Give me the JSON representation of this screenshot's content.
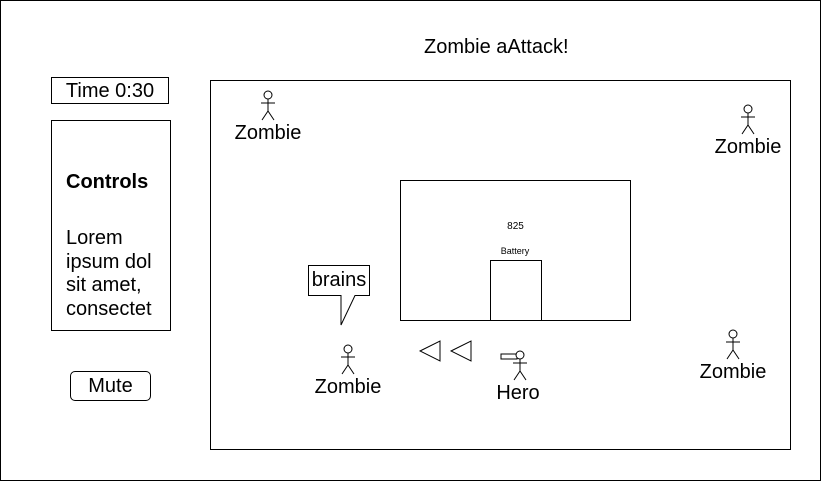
{
  "title": "Zombie aAttack!",
  "timer": {
    "label": "Time 0:30"
  },
  "controls": {
    "heading": "Controls",
    "text": "Lorem ipsum dol sit amet, consectet"
  },
  "mute": {
    "label": "Mute"
  },
  "arena": {
    "zombies": [
      {
        "label": "Zombie"
      },
      {
        "label": "Zombie"
      },
      {
        "label": "Zombie"
      },
      {
        "label": "Zombie"
      }
    ],
    "hero": {
      "label": "Hero"
    },
    "speech": {
      "text": "brains"
    },
    "house": {
      "score": "825",
      "battery_label": "Battery"
    },
    "arrows": [
      "left-arrow-icon",
      "left-arrow-icon"
    ]
  },
  "colors": {
    "stroke": "#000000",
    "background": "#ffffff"
  }
}
